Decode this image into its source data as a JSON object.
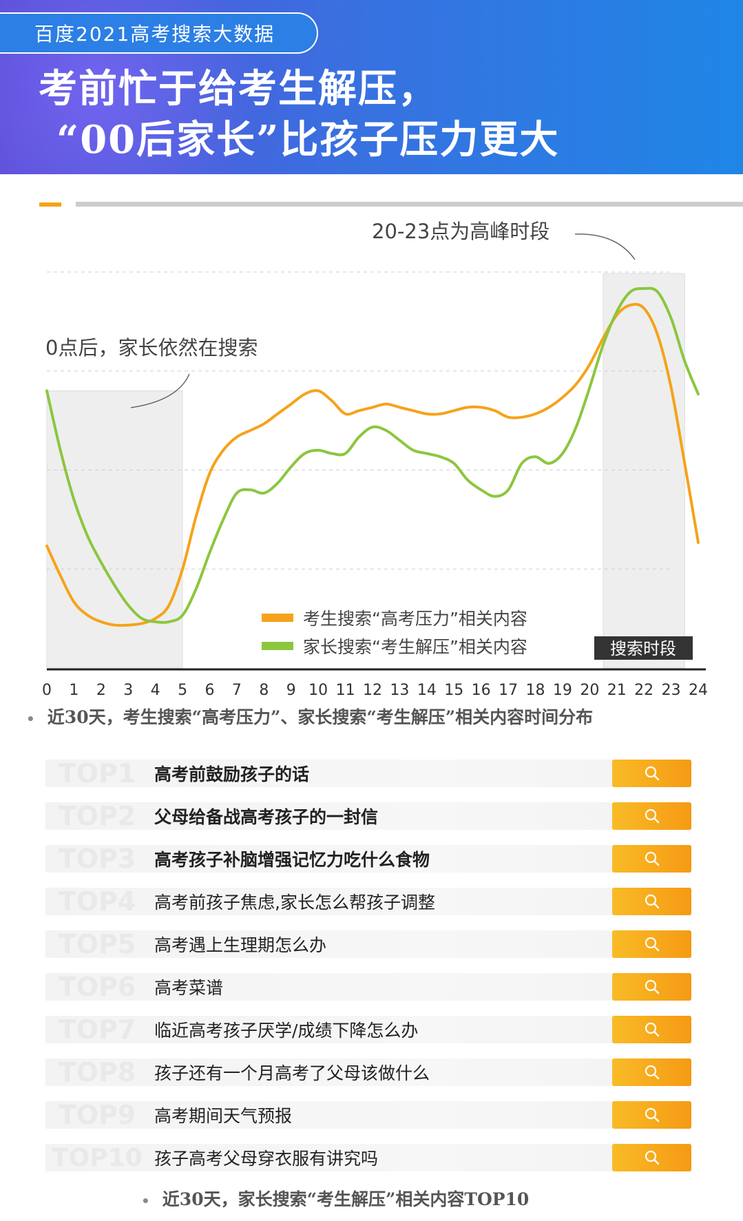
{
  "header": {
    "tag": "百度2021高考搜索大数据",
    "headline_line1": "考前忙于给考生解压，",
    "headline_line2": "“00后家长”比孩子压力更大"
  },
  "colors": {
    "student_series": "#f5a31a",
    "parent_series": "#8cc63f",
    "highlight_box": "#eeeeee",
    "search_button": "#f7a81b"
  },
  "chart_data": {
    "type": "line",
    "x": [
      0,
      0.5,
      1,
      1.5,
      2,
      2.5,
      3,
      3.5,
      4,
      4.5,
      5,
      5.5,
      6,
      6.5,
      7,
      7.5,
      8,
      8.5,
      9,
      9.5,
      10,
      10.5,
      11,
      11.5,
      12,
      12.5,
      13,
      13.5,
      14,
      14.5,
      15,
      15.5,
      16,
      16.5,
      17,
      17.5,
      18,
      18.5,
      19,
      19.5,
      20,
      20.5,
      21,
      21.5,
      22,
      22.5,
      23,
      23.5,
      24
    ],
    "series": [
      {
        "name": "考生搜索“高考压力”相关内容",
        "values": [
          37,
          28,
          20,
          16,
          14,
          13,
          13,
          13.5,
          15,
          19,
          30,
          46,
          59,
          66,
          70,
          72,
          74,
          77,
          80,
          83,
          84,
          81,
          77,
          78,
          79,
          80,
          79,
          78,
          77,
          77,
          78,
          79,
          79,
          78,
          76,
          76,
          77,
          79,
          82,
          86,
          92,
          100,
          107,
          110,
          109,
          101,
          85,
          62,
          38
        ]
      },
      {
        "name": "家长搜索“考生解压”相关内容",
        "values": [
          84,
          66,
          51,
          40,
          32,
          25,
          19,
          15,
          14,
          14,
          16,
          24,
          35,
          45,
          53,
          54,
          53,
          56,
          61,
          65,
          66,
          65,
          65,
          70,
          73,
          72,
          69,
          66,
          65,
          64,
          62,
          57,
          54,
          52,
          54,
          62,
          64,
          62,
          65,
          73,
          85,
          98,
          108,
          114,
          115,
          114,
          106,
          93,
          83
        ]
      }
    ],
    "tick_labels": [
      "0",
      "1",
      "2",
      "3",
      "4",
      "5",
      "6",
      "7",
      "8",
      "9",
      "10",
      "11",
      "12",
      "13",
      "14",
      "15",
      "16",
      "17",
      "18",
      "19",
      "20",
      "21",
      "22",
      "23",
      "24"
    ],
    "ylim": [
      0,
      120
    ],
    "grid": "dashed horizontal",
    "highlight_ranges": [
      [
        0,
        5
      ],
      [
        20.5,
        23.5
      ]
    ],
    "annotations": {
      "peak": "20-23点为高峰时段",
      "late_night": "0点后，家长依然在搜索",
      "highlight_label": "搜索时段"
    },
    "legend": "bottom-center",
    "caption": "近30天，考生搜索“高考压力”、家长搜索“考生解压”相关内容时间分布"
  },
  "top_list": {
    "items": [
      {
        "rank": "TOP1",
        "query": "高考前鼓励孩子的话",
        "bold": true
      },
      {
        "rank": "TOP2",
        "query": "父母给备战高考孩子的一封信",
        "bold": true
      },
      {
        "rank": "TOP3",
        "query": "高考孩子补脑增强记忆力吃什么食物",
        "bold": true
      },
      {
        "rank": "TOP4",
        "query": "高考前孩子焦虑,家长怎么帮孩子调整",
        "bold": false
      },
      {
        "rank": "TOP5",
        "query": "高考遇上生理期怎么办",
        "bold": false
      },
      {
        "rank": "TOP6",
        "query": "高考菜谱",
        "bold": false
      },
      {
        "rank": "TOP7",
        "query": "临近高考孩子厌学/成绩下降怎么办",
        "bold": false
      },
      {
        "rank": "TOP8",
        "query": "孩子还有一个月高考了父母该做什么",
        "bold": false
      },
      {
        "rank": "TOP9",
        "query": "高考期间天气预报",
        "bold": false
      },
      {
        "rank": "TOP10",
        "query": "孩子高考父母穿衣服有讲究吗",
        "bold": false
      }
    ],
    "caption": "近30天，家长搜索“考生解压”相关内容TOP10"
  }
}
